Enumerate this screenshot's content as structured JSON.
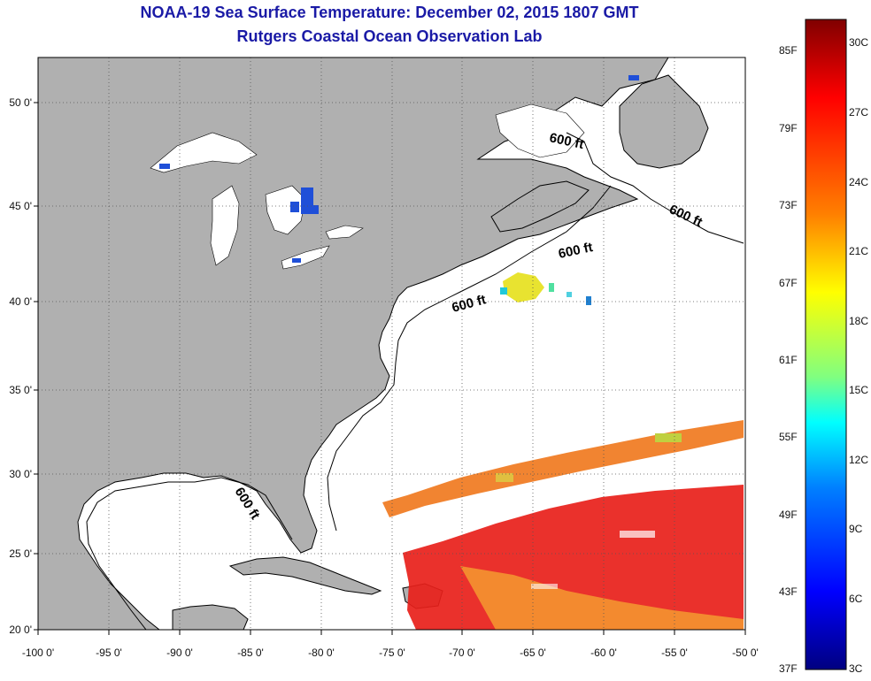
{
  "title": {
    "line1": "NOAA-19 Sea Surface Temperature:  December 02, 2015 1807 GMT",
    "line2": "Rutgers Coastal Ocean Observation Lab"
  },
  "map": {
    "lat_labels": [
      "50 0'",
      "45 0'",
      "40 0'",
      "35 0'",
      "30 0'",
      "25 0'",
      "20 0'"
    ],
    "lon_labels": [
      "-100 0'",
      "-95 0'",
      "-90 0'",
      "-85 0'",
      "-80 0'",
      "-75 0'",
      "-70 0'",
      "-65 0'",
      "-60 0'",
      "-55 0'",
      "-50 0'"
    ],
    "contour_label": "600 ft",
    "land_color": "#b0b0b0",
    "ocean_color": "#ffffff",
    "title_color": "#1a1aa6"
  },
  "colorbar": {
    "fahrenheit_labels": [
      "85F",
      "79F",
      "73F",
      "67F",
      "61F",
      "55F",
      "49F",
      "43F",
      "37F"
    ],
    "celsius_labels": [
      "30C",
      "27C",
      "24C",
      "21C",
      "18C",
      "15C",
      "12C",
      "9C",
      "6C",
      "3C"
    ],
    "colors_top_to_bottom": [
      "#800000",
      "#ff0000",
      "#ff8000",
      "#ffff00",
      "#80ff80",
      "#00ffff",
      "#0080ff",
      "#0000ff",
      "#000080"
    ]
  }
}
